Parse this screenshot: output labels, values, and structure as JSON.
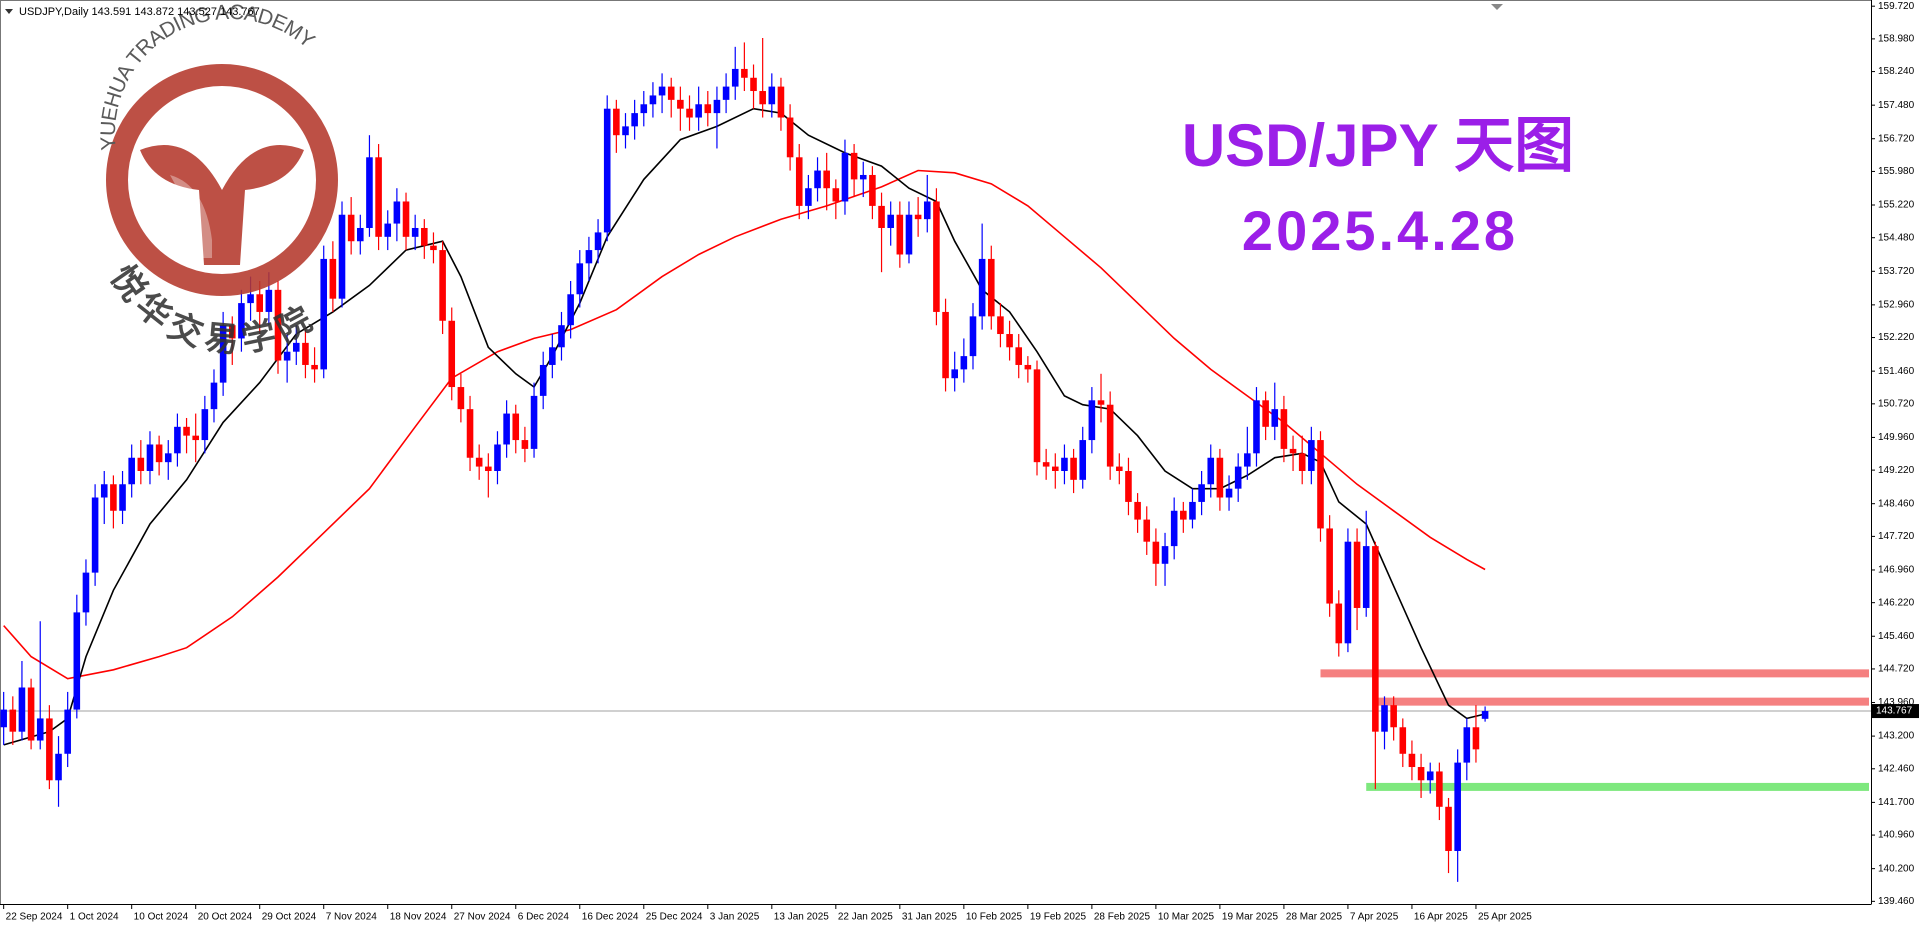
{
  "chart_data": {
    "type": "candlestick",
    "header": "USDJPY,Daily 143.591 143.872 143.527 143.767",
    "title": "USD/JPY 天图",
    "subtitle": "2025.4.28",
    "watermark_top": "YUEHUA TRADING ACADEMY",
    "watermark_bottom": "悦华交易学院",
    "up_color": "#0000ff",
    "down_color": "#ff0000",
    "ohlc": [
      [
        143.4,
        144.2,
        143.0,
        143.8
      ],
      [
        143.8,
        144.1,
        143.0,
        143.3
      ],
      [
        143.3,
        144.9,
        143.1,
        144.3
      ],
      [
        144.3,
        144.5,
        142.9,
        143.1
      ],
      [
        143.1,
        145.8,
        142.9,
        143.6
      ],
      [
        143.6,
        143.9,
        142.0,
        142.2
      ],
      [
        142.2,
        143.2,
        141.6,
        142.8
      ],
      [
        142.8,
        144.2,
        142.5,
        143.8
      ],
      [
        143.8,
        146.4,
        143.6,
        146.0
      ],
      [
        146.0,
        147.2,
        145.7,
        146.9
      ],
      [
        146.9,
        148.9,
        146.6,
        148.6
      ],
      [
        148.6,
        149.2,
        148.0,
        148.9
      ],
      [
        148.9,
        149.1,
        147.9,
        148.3
      ],
      [
        148.3,
        149.2,
        148.0,
        148.9
      ],
      [
        148.9,
        149.8,
        148.6,
        149.5
      ],
      [
        149.5,
        149.9,
        148.9,
        149.2
      ],
      [
        149.2,
        150.1,
        148.9,
        149.8
      ],
      [
        149.8,
        150.0,
        149.1,
        149.4
      ],
      [
        149.4,
        149.9,
        149.0,
        149.6
      ],
      [
        149.6,
        150.5,
        149.3,
        150.2
      ],
      [
        150.2,
        150.4,
        149.6,
        150.0
      ],
      [
        150.0,
        150.5,
        149.4,
        149.9
      ],
      [
        149.9,
        150.9,
        149.6,
        150.6
      ],
      [
        150.6,
        151.5,
        150.3,
        151.2
      ],
      [
        151.2,
        152.8,
        150.9,
        152.5
      ],
      [
        152.5,
        152.7,
        151.6,
        152.2
      ],
      [
        152.2,
        153.3,
        151.9,
        153.0
      ],
      [
        153.0,
        153.6,
        152.6,
        153.2
      ],
      [
        153.2,
        153.5,
        152.3,
        152.8
      ],
      [
        152.8,
        153.7,
        152.5,
        153.3
      ],
      [
        153.3,
        153.5,
        151.4,
        151.7
      ],
      [
        151.7,
        152.3,
        151.2,
        151.9
      ],
      [
        151.9,
        152.5,
        151.6,
        152.1
      ],
      [
        152.1,
        152.4,
        151.3,
        151.6
      ],
      [
        151.6,
        152.0,
        151.2,
        151.5
      ],
      [
        151.5,
        154.3,
        151.3,
        154.0
      ],
      [
        154.0,
        154.4,
        152.8,
        153.1
      ],
      [
        153.1,
        155.3,
        152.9,
        155.0
      ],
      [
        155.0,
        155.4,
        154.1,
        154.4
      ],
      [
        154.4,
        155.0,
        154.1,
        154.7
      ],
      [
        154.7,
        156.8,
        154.5,
        156.3
      ],
      [
        156.3,
        156.6,
        154.2,
        154.5
      ],
      [
        154.5,
        155.1,
        154.2,
        154.8
      ],
      [
        154.8,
        155.6,
        154.4,
        155.3
      ],
      [
        155.3,
        155.5,
        154.2,
        154.5
      ],
      [
        154.5,
        155.0,
        154.2,
        154.7
      ],
      [
        154.7,
        154.9,
        154.0,
        154.3
      ],
      [
        154.3,
        154.6,
        153.9,
        154.2
      ],
      [
        154.2,
        154.4,
        152.3,
        152.6
      ],
      [
        152.6,
        152.9,
        150.8,
        151.1
      ],
      [
        151.1,
        151.4,
        150.3,
        150.6
      ],
      [
        150.6,
        150.9,
        149.2,
        149.5
      ],
      [
        149.5,
        149.8,
        149.0,
        149.3
      ],
      [
        149.3,
        149.6,
        148.6,
        149.2
      ],
      [
        149.2,
        150.1,
        148.9,
        149.8
      ],
      [
        149.8,
        150.8,
        149.5,
        150.5
      ],
      [
        150.5,
        150.7,
        149.6,
        149.9
      ],
      [
        149.9,
        150.2,
        149.4,
        149.7
      ],
      [
        149.7,
        151.2,
        149.5,
        150.9
      ],
      [
        150.9,
        151.9,
        150.6,
        151.6
      ],
      [
        151.6,
        152.3,
        151.3,
        152.0
      ],
      [
        152.0,
        152.8,
        151.7,
        152.5
      ],
      [
        152.5,
        153.5,
        152.2,
        153.2
      ],
      [
        153.2,
        154.2,
        152.9,
        153.9
      ],
      [
        153.9,
        154.5,
        153.5,
        154.2
      ],
      [
        154.2,
        154.9,
        153.9,
        154.6
      ],
      [
        154.6,
        157.7,
        154.4,
        157.4
      ],
      [
        157.4,
        157.6,
        156.4,
        156.8
      ],
      [
        156.8,
        157.3,
        156.5,
        157.0
      ],
      [
        157.0,
        157.6,
        156.7,
        157.3
      ],
      [
        157.3,
        157.8,
        157.0,
        157.5
      ],
      [
        157.5,
        158.0,
        157.2,
        157.7
      ],
      [
        157.7,
        158.2,
        157.3,
        157.9
      ],
      [
        157.9,
        158.1,
        157.2,
        157.6
      ],
      [
        157.6,
        157.9,
        156.9,
        157.4
      ],
      [
        157.4,
        157.7,
        156.9,
        157.2
      ],
      [
        157.2,
        157.9,
        156.9,
        157.5
      ],
      [
        157.5,
        157.8,
        157.0,
        157.3
      ],
      [
        157.3,
        157.9,
        156.5,
        157.6
      ],
      [
        157.6,
        158.2,
        157.3,
        157.9
      ],
      [
        157.9,
        158.8,
        157.6,
        158.3
      ],
      [
        158.3,
        158.9,
        157.8,
        158.1
      ],
      [
        158.1,
        158.4,
        157.4,
        157.8
      ],
      [
        157.8,
        159.0,
        157.2,
        157.5
      ],
      [
        157.5,
        158.2,
        157.2,
        157.9
      ],
      [
        157.9,
        158.1,
        156.9,
        157.2
      ],
      [
        157.2,
        157.5,
        156.0,
        156.3
      ],
      [
        156.3,
        156.6,
        154.9,
        155.2
      ],
      [
        155.2,
        155.9,
        154.9,
        155.6
      ],
      [
        155.6,
        156.3,
        155.3,
        156.0
      ],
      [
        156.0,
        156.4,
        155.1,
        155.6
      ],
      [
        155.6,
        155.8,
        154.9,
        155.3
      ],
      [
        155.3,
        156.7,
        155.0,
        156.4
      ],
      [
        156.4,
        156.6,
        155.4,
        155.8
      ],
      [
        155.8,
        156.2,
        155.4,
        155.9
      ],
      [
        155.9,
        156.1,
        154.9,
        155.2
      ],
      [
        155.2,
        155.5,
        153.7,
        154.7
      ],
      [
        154.7,
        155.3,
        154.3,
        155.0
      ],
      [
        155.0,
        155.3,
        153.8,
        154.1
      ],
      [
        154.1,
        155.3,
        153.9,
        155.0
      ],
      [
        155.0,
        155.4,
        154.5,
        154.9
      ],
      [
        154.9,
        155.9,
        154.6,
        155.3
      ],
      [
        155.3,
        155.6,
        152.5,
        152.8
      ],
      [
        152.8,
        153.1,
        151.0,
        151.3
      ],
      [
        151.3,
        151.9,
        151.0,
        151.5
      ],
      [
        151.5,
        152.2,
        151.2,
        151.8
      ],
      [
        151.8,
        153.0,
        151.5,
        152.7
      ],
      [
        152.7,
        154.8,
        152.4,
        154.0
      ],
      [
        154.0,
        154.3,
        152.4,
        152.7
      ],
      [
        152.7,
        153.0,
        152.0,
        152.3
      ],
      [
        152.3,
        152.6,
        151.7,
        152.0
      ],
      [
        152.0,
        152.3,
        151.3,
        151.6
      ],
      [
        151.6,
        151.8,
        151.2,
        151.5
      ],
      [
        151.5,
        151.7,
        149.1,
        149.4
      ],
      [
        149.4,
        149.7,
        149.0,
        149.3
      ],
      [
        149.3,
        149.6,
        148.8,
        149.2
      ],
      [
        149.2,
        149.8,
        148.9,
        149.5
      ],
      [
        149.5,
        149.7,
        148.7,
        149.0
      ],
      [
        149.0,
        150.2,
        148.8,
        149.9
      ],
      [
        149.9,
        151.1,
        149.6,
        150.8
      ],
      [
        150.8,
        151.4,
        150.3,
        150.7
      ],
      [
        150.7,
        151.0,
        149.0,
        149.3
      ],
      [
        149.3,
        149.6,
        148.9,
        149.2
      ],
      [
        149.2,
        149.5,
        148.2,
        148.5
      ],
      [
        148.5,
        148.7,
        147.8,
        148.1
      ],
      [
        148.1,
        148.4,
        147.3,
        147.6
      ],
      [
        147.6,
        147.9,
        146.6,
        147.1
      ],
      [
        147.1,
        147.8,
        146.6,
        147.5
      ],
      [
        147.5,
        148.6,
        147.2,
        148.3
      ],
      [
        148.3,
        148.5,
        147.8,
        148.1
      ],
      [
        148.1,
        148.8,
        147.9,
        148.5
      ],
      [
        148.5,
        149.2,
        148.2,
        148.9
      ],
      [
        148.9,
        149.8,
        148.6,
        149.5
      ],
      [
        149.5,
        149.7,
        148.3,
        148.6
      ],
      [
        148.6,
        149.1,
        148.3,
        148.8
      ],
      [
        148.8,
        149.6,
        148.5,
        149.3
      ],
      [
        149.3,
        150.2,
        149.0,
        149.6
      ],
      [
        149.6,
        151.1,
        149.3,
        150.8
      ],
      [
        150.8,
        151.0,
        149.9,
        150.2
      ],
      [
        150.2,
        151.2,
        149.9,
        150.6
      ],
      [
        150.6,
        150.9,
        149.4,
        149.7
      ],
      [
        149.7,
        150.0,
        149.2,
        149.6
      ],
      [
        149.6,
        150.0,
        148.9,
        149.2
      ],
      [
        149.2,
        150.2,
        148.9,
        149.9
      ],
      [
        149.9,
        150.1,
        147.6,
        147.9
      ],
      [
        147.9,
        148.2,
        145.9,
        146.2
      ],
      [
        146.2,
        146.5,
        145.0,
        145.3
      ],
      [
        145.3,
        147.9,
        145.1,
        147.6
      ],
      [
        147.6,
        147.9,
        145.6,
        146.1
      ],
      [
        146.1,
        148.3,
        145.9,
        147.5
      ],
      [
        147.5,
        147.6,
        142.0,
        143.3
      ],
      [
        143.3,
        144.1,
        142.9,
        143.9
      ],
      [
        143.9,
        144.1,
        143.1,
        143.4
      ],
      [
        143.4,
        143.6,
        142.5,
        142.8
      ],
      [
        142.8,
        143.1,
        142.2,
        142.5
      ],
      [
        142.5,
        142.8,
        141.8,
        142.2
      ],
      [
        142.2,
        142.6,
        141.9,
        142.4
      ],
      [
        142.4,
        142.6,
        141.3,
        141.6
      ],
      [
        141.6,
        141.8,
        140.1,
        140.6
      ],
      [
        140.6,
        142.9,
        139.9,
        142.6
      ],
      [
        142.6,
        143.6,
        142.2,
        143.4
      ],
      [
        143.4,
        143.9,
        142.6,
        142.9
      ],
      [
        143.591,
        143.872,
        143.527,
        143.767
      ]
    ],
    "xlim": [
      -0.4,
      204.2
    ],
    "xticks": [
      {
        "value": 0,
        "label": "22 Sep 2024"
      },
      {
        "value": 7,
        "label": "1 Oct 2024"
      },
      {
        "value": 14,
        "label": "10 Oct 2024"
      },
      {
        "value": 21,
        "label": "20 Oct 2024"
      },
      {
        "value": 28,
        "label": "29 Oct 2024"
      },
      {
        "value": 35,
        "label": "7 Nov 2024"
      },
      {
        "value": 42,
        "label": "18 Nov 2024"
      },
      {
        "value": 49,
        "label": "27 Nov 2024"
      },
      {
        "value": 56,
        "label": "6 Dec 2024"
      },
      {
        "value": 63,
        "label": "16 Dec 2024"
      },
      {
        "value": 70,
        "label": "25 Dec 2024"
      },
      {
        "value": 77,
        "label": "3 Jan 2025"
      },
      {
        "value": 84,
        "label": "13 Jan 2025"
      },
      {
        "value": 91,
        "label": "22 Jan 2025"
      },
      {
        "value": 98,
        "label": "31 Jan 2025"
      },
      {
        "value": 105,
        "label": "10 Feb 2025"
      },
      {
        "value": 112,
        "label": "19 Feb 2025"
      },
      {
        "value": 119,
        "label": "28 Feb 2025"
      },
      {
        "value": 126,
        "label": "10 Mar 2025"
      },
      {
        "value": 133,
        "label": "19 Mar 2025"
      },
      {
        "value": 140,
        "label": "28 Mar 2025"
      },
      {
        "value": 147,
        "label": "7 Apr 2025"
      },
      {
        "value": 154,
        "label": "16 Apr 2025"
      },
      {
        "value": 161,
        "label": "25 Apr 2025"
      }
    ],
    "ylim": [
      139.4,
      159.86
    ],
    "yticks": [
      {
        "value": 159.72,
        "label": "159.720"
      },
      {
        "value": 158.98,
        "label": "158.980"
      },
      {
        "value": 158.24,
        "label": "158.240"
      },
      {
        "value": 157.48,
        "label": "157.480"
      },
      {
        "value": 156.72,
        "label": "156.720"
      },
      {
        "value": 155.98,
        "label": "155.980"
      },
      {
        "value": 155.22,
        "label": "155.220"
      },
      {
        "value": 154.48,
        "label": "154.480"
      },
      {
        "value": 153.72,
        "label": "153.720"
      },
      {
        "value": 152.96,
        "label": "152.960"
      },
      {
        "value": 152.22,
        "label": "152.220"
      },
      {
        "value": 151.46,
        "label": "151.460"
      },
      {
        "value": 150.72,
        "label": "150.720"
      },
      {
        "value": 149.96,
        "label": "149.960"
      },
      {
        "value": 149.22,
        "label": "149.220"
      },
      {
        "value": 148.46,
        "label": "148.460"
      },
      {
        "value": 147.72,
        "label": "147.720"
      },
      {
        "value": 146.96,
        "label": "146.960"
      },
      {
        "value": 146.22,
        "label": "146.220"
      },
      {
        "value": 145.46,
        "label": "145.460"
      },
      {
        "value": 144.72,
        "label": "144.720"
      },
      {
        "value": 143.96,
        "label": "143.960"
      },
      {
        "value": 143.2,
        "label": "143.200"
      },
      {
        "value": 142.46,
        "label": "142.460"
      },
      {
        "value": 141.7,
        "label": "141.700"
      },
      {
        "value": 140.96,
        "label": "140.960"
      },
      {
        "value": 140.2,
        "label": "140.200"
      },
      {
        "value": 139.46,
        "label": "139.460"
      }
    ],
    "series": [
      {
        "color": "#ff0000",
        "x": [
          0,
          3,
          7,
          12,
          17,
          20,
          25,
          30,
          35,
          40,
          45,
          49,
          54,
          58,
          62,
          67,
          72,
          76,
          80,
          85,
          90,
          96,
          100,
          104,
          108,
          112,
          116,
          120,
          124,
          128,
          132,
          136,
          140,
          144,
          148,
          152,
          156,
          160,
          162
        ],
        "values": [
          145.7,
          145.0,
          144.5,
          144.7,
          145.0,
          145.2,
          145.9,
          146.8,
          147.8,
          148.8,
          150.2,
          151.3,
          151.9,
          152.2,
          152.4,
          152.85,
          153.6,
          154.1,
          154.5,
          154.9,
          155.2,
          155.63,
          156.0,
          155.95,
          155.7,
          155.2,
          154.5,
          153.8,
          153.0,
          152.2,
          151.5,
          150.9,
          150.3,
          149.6,
          148.9,
          148.3,
          147.7,
          147.2,
          146.97
        ]
      },
      {
        "color": "#000000",
        "x": [
          0,
          5,
          7,
          9,
          12,
          16,
          20,
          24,
          28,
          32,
          36,
          40,
          44,
          48,
          50,
          53,
          56,
          58,
          60,
          63,
          66,
          70,
          74,
          78,
          82,
          85,
          88,
          92,
          96,
          99,
          102,
          104,
          107,
          110,
          113,
          116,
          118,
          121,
          124,
          127,
          130,
          133,
          136,
          139,
          142,
          144,
          146,
          149,
          152,
          155,
          158,
          160,
          162
        ],
        "values": [
          143.0,
          143.3,
          143.6,
          145.0,
          146.5,
          148.0,
          149.0,
          150.3,
          151.2,
          152.3,
          152.8,
          153.4,
          154.2,
          154.4,
          153.6,
          152.0,
          151.4,
          151.1,
          151.8,
          153.0,
          154.5,
          155.8,
          156.7,
          157.0,
          157.4,
          157.3,
          156.8,
          156.4,
          156.1,
          155.6,
          155.3,
          154.4,
          153.3,
          152.8,
          151.9,
          150.9,
          150.7,
          150.6,
          150.0,
          149.2,
          148.8,
          148.8,
          149.1,
          149.5,
          149.6,
          149.4,
          148.5,
          148.0,
          146.6,
          145.2,
          143.9,
          143.6,
          143.7
        ]
      }
    ],
    "levels": [
      {
        "value": 144.62,
        "start": 144,
        "color": "#f58080"
      },
      {
        "value": 143.98,
        "start": 150,
        "color": "#f58080"
      },
      {
        "value": 142.05,
        "start": 149,
        "color": "#7ee87e"
      }
    ],
    "last_price": {
      "value": 143.767,
      "label": "143.767"
    }
  }
}
